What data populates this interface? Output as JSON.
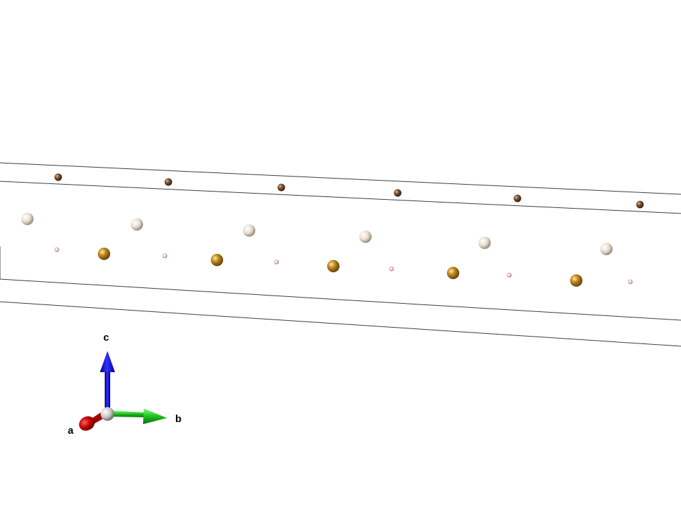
{
  "axes": {
    "a": {
      "label": "a",
      "color": "#b00000"
    },
    "b": {
      "label": "b",
      "color": "#22cc22"
    },
    "c": {
      "label": "c",
      "color": "#1515e0"
    },
    "origin_color": "#c8c8c8"
  },
  "atom_colors": {
    "dark_brown": "#7a5030",
    "light_cream": "#e8e0d0",
    "gold": "#c08820",
    "pink_small": "#e8c0c0"
  }
}
